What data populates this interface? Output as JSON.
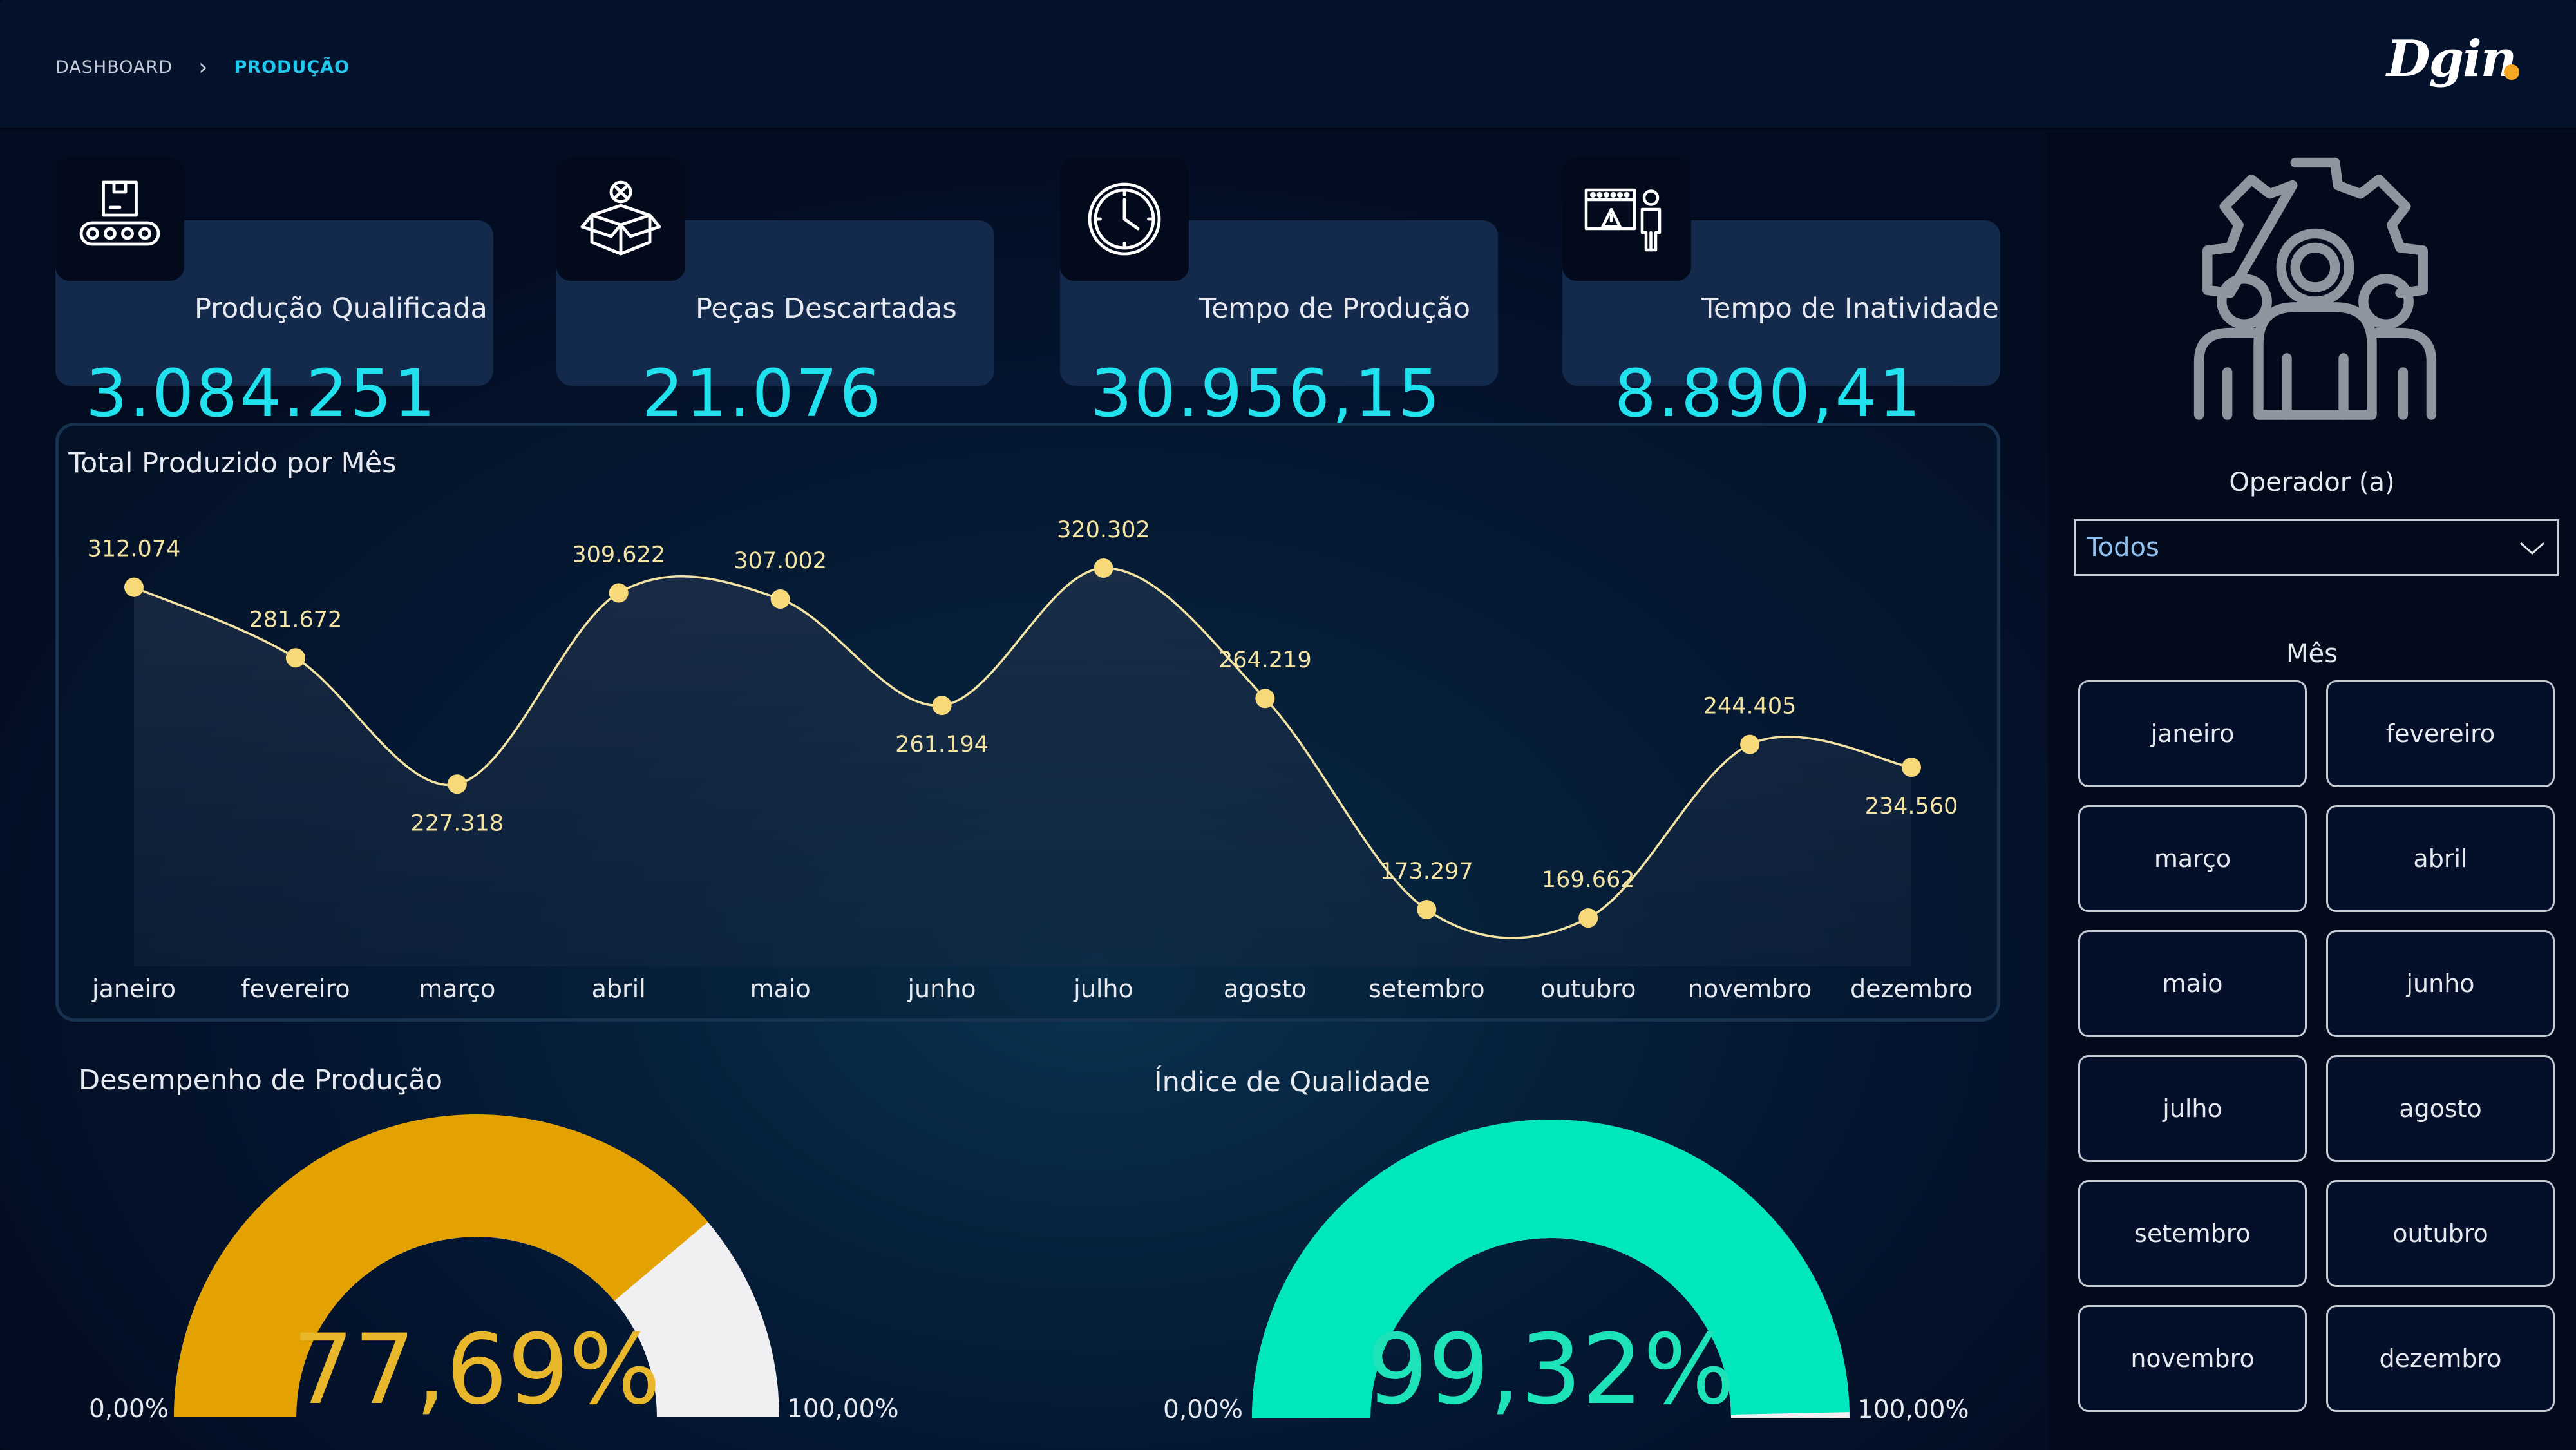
{
  "breadcrumb": {
    "root": "DASHBOARD",
    "current": "PRODUÇÃO"
  },
  "logo": {
    "text": "Dgin"
  },
  "kpis": [
    {
      "title": "Produção Qualificada",
      "value": "3.084.251",
      "icon": "conveyor-box-icon"
    },
    {
      "title": "Peças Descartadas",
      "value": "21.076",
      "icon": "discarded-box-icon"
    },
    {
      "title": "Tempo de Produção",
      "value": "30.956,15",
      "icon": "clock-icon"
    },
    {
      "title": "Tempo de Inatividade",
      "value": "8.890,41",
      "icon": "idle-operator-icon"
    }
  ],
  "sidebar": {
    "operator_label": "Operador (a)",
    "operator_selected": "Todos",
    "month_label": "Mês",
    "months": [
      "janeiro",
      "fevereiro",
      "março",
      "abril",
      "maio",
      "junho",
      "julho",
      "agosto",
      "setembro",
      "outubro",
      "novembro",
      "dezembro"
    ]
  },
  "chart_data": {
    "type": "area",
    "title": "Total Produzido por Mês",
    "categories": [
      "janeiro",
      "fevereiro",
      "março",
      "abril",
      "maio",
      "junho",
      "julho",
      "agosto",
      "setembro",
      "outubro",
      "novembro",
      "dezembro"
    ],
    "values": [
      312074,
      281672,
      227318,
      309622,
      307002,
      261194,
      320302,
      264219,
      173297,
      169662,
      244405,
      234560
    ],
    "value_labels": [
      "312.074",
      "281.672",
      "227.318",
      "309.622",
      "307.002",
      "261.194",
      "320.302",
      "264.219",
      "173.297",
      "169.662",
      "244.405",
      "234.560"
    ],
    "ylim": [
      0,
      320302
    ],
    "line_color": "#f3e4a4",
    "marker_color": "#f8d97a",
    "smooth": true
  },
  "gauges": [
    {
      "title": "Desempenho de Produção",
      "value": 77.69,
      "value_label": "77,69%",
      "min_label": "0,00%",
      "max_label": "100,00%",
      "fill_color": "#e3a102",
      "track_color": "#f0f0f2",
      "text_color": "#e9b72c"
    },
    {
      "title": "Índice de Qualidade",
      "value": 99.32,
      "value_label": "99,32%",
      "min_label": "0,00%",
      "max_label": "100,00%",
      "fill_color": "#00e6bd",
      "track_color": "#f0f0f2",
      "text_color": "#1ee3b9"
    }
  ]
}
